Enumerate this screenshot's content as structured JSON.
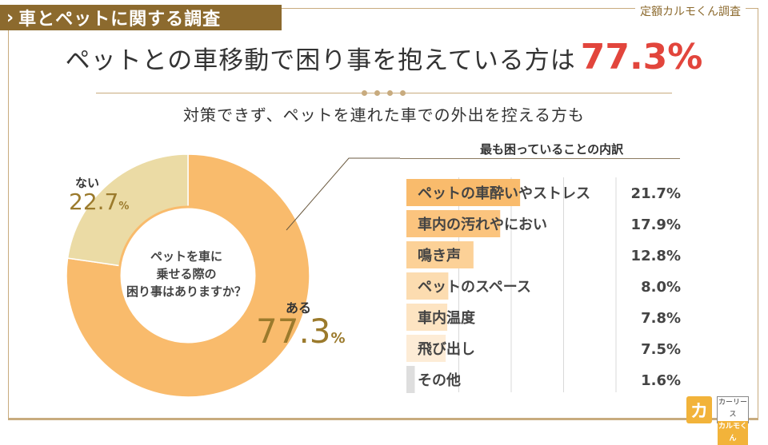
{
  "header": {
    "tag_label": "車とペットに関する調査",
    "brand_label": "定額カルモくん調査"
  },
  "headline": {
    "text": "ペットとの車移動で困り事を抱えている方は",
    "percent": "77.3%"
  },
  "subline": "対策できず、ペットを連れた車での外出を控える方も",
  "colors": {
    "accent_red": "#e2453c",
    "brand_brown": "#8c6a2e",
    "donut_main": "#f9bb6c",
    "donut_minor": "#ebdba5"
  },
  "chart_data": [
    {
      "type": "pie",
      "title": "ペットを車に乗せる際の困り事はありますか？",
      "title_lines": [
        "ペットを車に",
        "乗せる際の",
        "困り事はありますか？"
      ],
      "slices": [
        {
          "label": "ある",
          "value": 77.3,
          "value_text": "77.3",
          "unit": "%",
          "color": "#f9bb6c"
        },
        {
          "label": "ない",
          "value": 22.7,
          "value_text": "22.7",
          "unit": "%",
          "color": "#ebdba5"
        }
      ],
      "legend": "none"
    },
    {
      "type": "bar",
      "orientation": "horizontal",
      "title": "最も困っていることの内訳",
      "categories": [
        "ペットの車酔いやストレス",
        "車内の汚れやにおい",
        "鳴き声",
        "ペットのスペース",
        "車内温度",
        "飛び出し",
        "その他"
      ],
      "values": [
        21.7,
        17.9,
        12.8,
        8.0,
        7.8,
        7.5,
        1.6
      ],
      "value_labels": [
        "21.7%",
        "17.9%",
        "12.8%",
        "8.0%",
        "7.8%",
        "7.5%",
        "1.6%"
      ],
      "xlim": [
        0,
        40
      ],
      "grid": true
    }
  ],
  "logo": {
    "mark_text": "カ",
    "line1": "カーリース",
    "line2": "カルモくん"
  }
}
